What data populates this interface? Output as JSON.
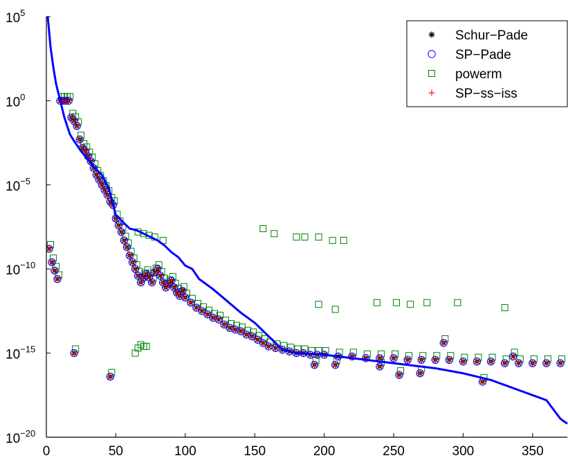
{
  "chart_data": {
    "type": "scatter",
    "title": "",
    "xlabel": "",
    "ylabel": "",
    "xlim": [
      0,
      375
    ],
    "ylim_log10": [
      -20,
      5
    ],
    "yscale": "log",
    "grid": false,
    "legend_position": "top-right",
    "x_ticks": [
      "0",
      "50",
      "100",
      "150",
      "200",
      "250",
      "300",
      "350"
    ],
    "y_ticks": [
      {
        "base": "10",
        "exp": "5",
        "log": 5
      },
      {
        "base": "10",
        "exp": "0",
        "log": 0
      },
      {
        "base": "10",
        "exp": "−5",
        "log": -5
      },
      {
        "base": "10",
        "exp": "−10",
        "log": -10
      },
      {
        "base": "10",
        "exp": "−15",
        "log": -15
      },
      {
        "base": "10",
        "exp": "−20",
        "log": -20
      }
    ],
    "legend": [
      {
        "label": "Schur−Pade",
        "marker": "asterisk",
        "color": "#000000"
      },
      {
        "label": "SP−Pade",
        "marker": "circle",
        "color": "#0000ff"
      },
      {
        "label": "powerm",
        "marker": "square",
        "color": "#008000"
      },
      {
        "label": "SP−ss−iss",
        "marker": "plus",
        "color": "#ff0000"
      }
    ],
    "line": {
      "color": "#0000ff",
      "points": [
        [
          1,
          5
        ],
        [
          3,
          3.2
        ],
        [
          5,
          2
        ],
        [
          7,
          1
        ],
        [
          10,
          0
        ],
        [
          13,
          -1
        ],
        [
          17,
          -2
        ],
        [
          20,
          -2.4
        ],
        [
          25,
          -3
        ],
        [
          30,
          -3.5
        ],
        [
          35,
          -4
        ],
        [
          40,
          -4.4
        ],
        [
          45,
          -5.2
        ],
        [
          50,
          -6.8
        ],
        [
          55,
          -7.2
        ],
        [
          60,
          -7.6
        ],
        [
          65,
          -7.7
        ],
        [
          70,
          -7.9
        ],
        [
          75,
          -8.1
        ],
        [
          80,
          -8.3
        ],
        [
          85,
          -8.6
        ],
        [
          90,
          -9
        ],
        [
          95,
          -9.3
        ],
        [
          100,
          -9.8
        ],
        [
          105,
          -10
        ],
        [
          110,
          -10.6
        ],
        [
          120,
          -11.2
        ],
        [
          130,
          -11.9
        ],
        [
          140,
          -12.6
        ],
        [
          150,
          -13.2
        ],
        [
          160,
          -14
        ],
        [
          170,
          -14.8
        ],
        [
          180,
          -15
        ],
        [
          200,
          -15.1
        ],
        [
          220,
          -15.3
        ],
        [
          240,
          -15.5
        ],
        [
          260,
          -15.7
        ],
        [
          280,
          -15.9
        ],
        [
          300,
          -16.2
        ],
        [
          320,
          -16.6
        ],
        [
          340,
          -17.2
        ],
        [
          360,
          -17.8
        ],
        [
          370,
          -18.9
        ],
        [
          375,
          -19.2
        ]
      ]
    },
    "series_main": {
      "name": "Schur−Pade / SP−Pade / SP−ss−iss",
      "points": [
        [
          10,
          0
        ],
        [
          12,
          0
        ],
        [
          14,
          0
        ],
        [
          16,
          0
        ],
        [
          18,
          -1
        ],
        [
          20,
          -1.2
        ],
        [
          22,
          -1.5
        ],
        [
          24,
          -2.3
        ],
        [
          26,
          -2.8
        ],
        [
          28,
          -3
        ],
        [
          30,
          -3.3
        ],
        [
          32,
          -3.6
        ],
        [
          34,
          -4
        ],
        [
          36,
          -4.4
        ],
        [
          38,
          -4.7
        ],
        [
          40,
          -5
        ],
        [
          42,
          -5.3
        ],
        [
          44,
          -5.6
        ],
        [
          46,
          -6
        ],
        [
          48,
          -6.2
        ],
        [
          50,
          -7
        ],
        [
          52,
          -7.4
        ],
        [
          54,
          -7.8
        ],
        [
          56,
          -8.3
        ],
        [
          58,
          -8.7
        ],
        [
          60,
          -9.2
        ],
        [
          62,
          -9.6
        ],
        [
          64,
          -10
        ],
        [
          66,
          -10.4
        ],
        [
          68,
          -10.8
        ],
        [
          70,
          -10.5
        ],
        [
          72,
          -10.3
        ],
        [
          74,
          -10.5
        ],
        [
          76,
          -10.8
        ],
        [
          78,
          -10.2
        ],
        [
          80,
          -10
        ],
        [
          82,
          -10.4
        ],
        [
          84,
          -10.8
        ],
        [
          86,
          -11.1
        ],
        [
          88,
          -10.9
        ],
        [
          90,
          -10.7
        ],
        [
          92,
          -11.1
        ],
        [
          94,
          -11.4
        ],
        [
          96,
          -11.6
        ],
        [
          98,
          -11.3
        ],
        [
          100,
          -11.7
        ],
        [
          104,
          -12
        ],
        [
          108,
          -12.3
        ],
        [
          112,
          -12.5
        ],
        [
          116,
          -12.7
        ],
        [
          120,
          -12.9
        ],
        [
          124,
          -13
        ],
        [
          128,
          -13.3
        ],
        [
          132,
          -13.5
        ],
        [
          136,
          -13.6
        ],
        [
          140,
          -13.7
        ],
        [
          144,
          -13.9
        ],
        [
          148,
          -14
        ],
        [
          152,
          -14.2
        ],
        [
          156,
          -14.4
        ],
        [
          160,
          -14.6
        ],
        [
          165,
          -14.7
        ],
        [
          170,
          -14.8
        ],
        [
          175,
          -14.9
        ],
        [
          180,
          -15
        ],
        [
          185,
          -15
        ],
        [
          190,
          -15.1
        ],
        [
          195,
          -15.1
        ],
        [
          200,
          -15.1
        ],
        [
          210,
          -15.2
        ],
        [
          220,
          -15.2
        ],
        [
          230,
          -15.3
        ],
        [
          240,
          -15.3
        ],
        [
          250,
          -15.3
        ],
        [
          260,
          -15.4
        ],
        [
          270,
          -15.4
        ],
        [
          280,
          -15.4
        ],
        [
          290,
          -15.4
        ],
        [
          300,
          -15.5
        ],
        [
          310,
          -15.5
        ],
        [
          320,
          -15.5
        ],
        [
          330,
          -15.6
        ],
        [
          340,
          -15.6
        ],
        [
          350,
          -15.6
        ],
        [
          360,
          -15.6
        ],
        [
          370,
          -15.6
        ],
        [
          2,
          -8.8
        ],
        [
          4,
          -9.6
        ],
        [
          6,
          -10.1
        ],
        [
          8,
          -10.6
        ],
        [
          20,
          -15
        ],
        [
          46,
          -16.4
        ],
        [
          193,
          -15.7
        ],
        [
          208,
          -15.7
        ],
        [
          240,
          -15.8
        ],
        [
          254,
          -16.3
        ],
        [
          269,
          -16.2
        ],
        [
          286,
          -14.4
        ],
        [
          314,
          -16.7
        ],
        [
          336,
          -15.2
        ]
      ]
    },
    "series_powerm_outliers": {
      "name": "powerm",
      "points": [
        [
          64,
          -15
        ],
        [
          66,
          -14.7
        ],
        [
          68,
          -14.5
        ],
        [
          70,
          -14.6
        ],
        [
          72,
          -14.6
        ],
        [
          66,
          -7.8
        ],
        [
          70,
          -7.9
        ],
        [
          74,
          -8
        ],
        [
          78,
          -8.1
        ],
        [
          84,
          -8.3
        ],
        [
          156,
          -7.6
        ],
        [
          164,
          -7.9
        ],
        [
          180,
          -8.1
        ],
        [
          186,
          -8.1
        ],
        [
          196,
          -8.1
        ],
        [
          206,
          -8.3
        ],
        [
          214,
          -8.3
        ],
        [
          196,
          -12.1
        ],
        [
          208,
          -12.4
        ],
        [
          238,
          -12
        ],
        [
          252,
          -12
        ],
        [
          262,
          -12.1
        ],
        [
          274,
          -12
        ],
        [
          296,
          -12
        ],
        [
          330,
          -12.3
        ]
      ]
    }
  }
}
